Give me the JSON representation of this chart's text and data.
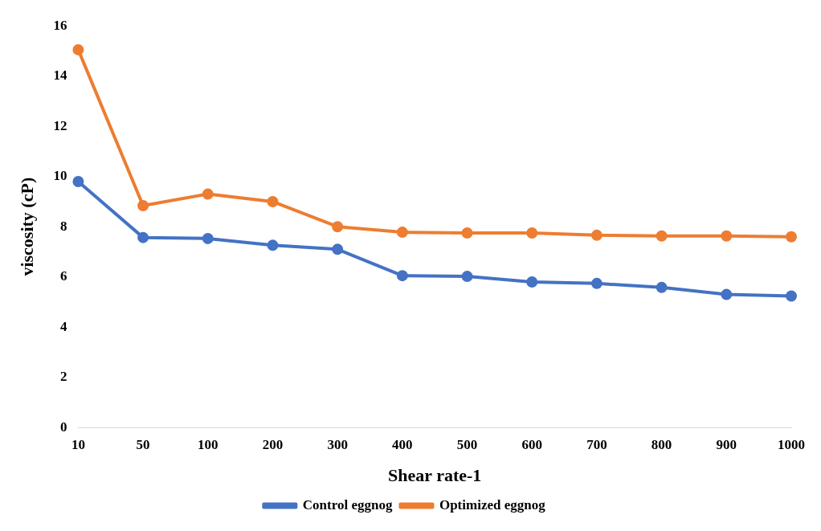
{
  "chart_data": {
    "type": "line",
    "xlabel": "Shear rate-1",
    "ylabel": "viscosity (cP)",
    "categories": [
      "10",
      "50",
      "100",
      "200",
      "300",
      "400",
      "500",
      "600",
      "700",
      "800",
      "900",
      "1000"
    ],
    "series": [
      {
        "name": "Control eggnog",
        "color": "#4472c4",
        "values": [
          9.8,
          7.57,
          7.53,
          7.26,
          7.1,
          6.05,
          6.02,
          5.8,
          5.74,
          5.58,
          5.3,
          5.24
        ]
      },
      {
        "name": "Optimized eggnog",
        "color": "#ed7d31",
        "values": [
          15.05,
          8.84,
          9.3,
          9.0,
          8.0,
          7.78,
          7.75,
          7.75,
          7.66,
          7.63,
          7.63,
          7.6
        ]
      }
    ],
    "ylim": [
      0,
      16
    ],
    "yticks": [
      0,
      2,
      4,
      6,
      8,
      10,
      12,
      14,
      16
    ],
    "grid": false,
    "legend": "bottom",
    "marker": "circle",
    "line_style": "solid"
  }
}
